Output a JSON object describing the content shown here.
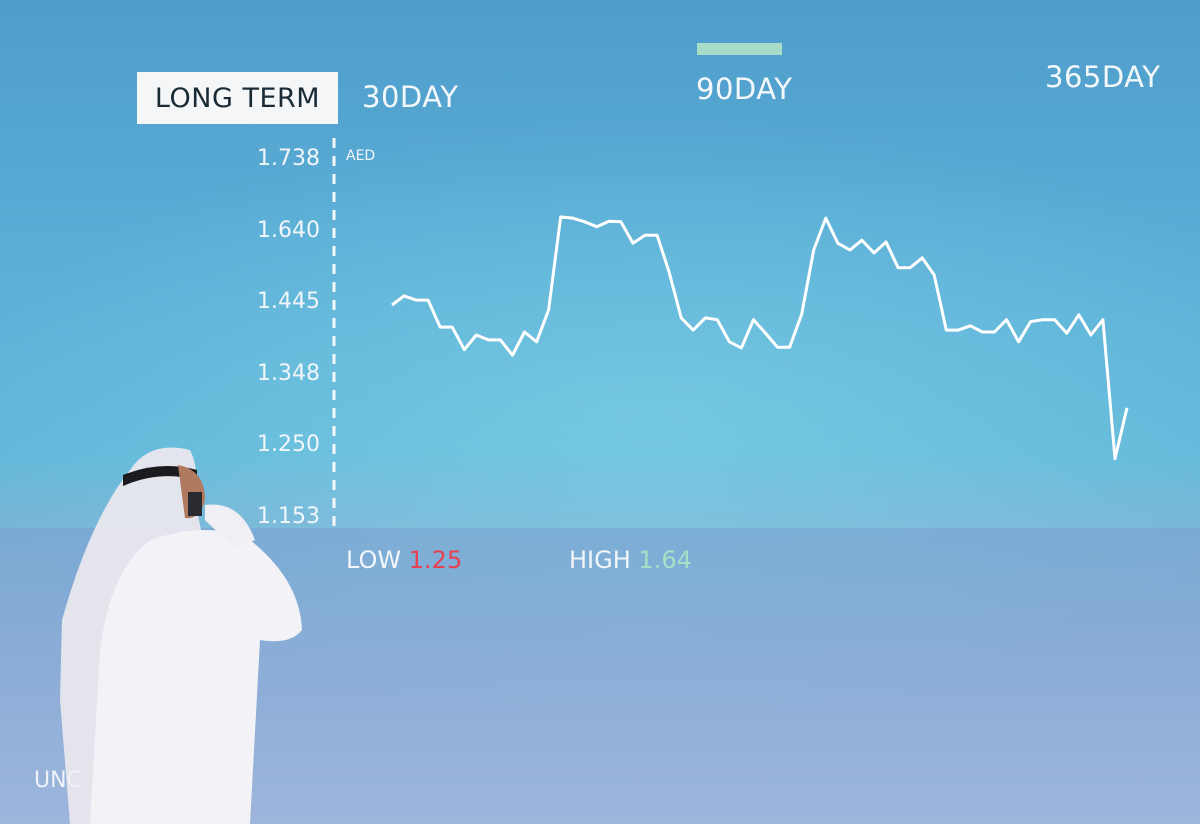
{
  "tabs": [
    {
      "label": "LONG TERM",
      "active": true
    },
    {
      "label": "30DAY",
      "active": false
    },
    {
      "label": "90DAY",
      "active": false,
      "highlighted": true
    },
    {
      "label": "365DAY",
      "active": false
    }
  ],
  "stats": {
    "low_label": "LOW",
    "low_value": "1.25",
    "high_label": "HIGH",
    "high_value": "1.64"
  },
  "footer_text": "UNC",
  "colors": {
    "line": "#ffffff",
    "low": "#e8404e",
    "high": "#a8e0c6",
    "selected_bar": "#a8dcc8",
    "background": "#5aaed6"
  },
  "chart_data": {
    "type": "line",
    "title": "",
    "ylabel": "AED",
    "xlabel": "",
    "yticks": [
      "1.738",
      "1.640",
      "1.445",
      "1.348",
      "1.250",
      "1.153"
    ],
    "ylim": [
      1.153,
      1.738
    ],
    "grid": false,
    "series": [
      {
        "values": [
          1.501,
          1.516,
          1.509,
          1.509,
          1.465,
          1.465,
          1.428,
          1.452,
          1.444,
          1.444,
          1.419,
          1.457,
          1.441,
          1.493,
          1.645,
          1.643,
          1.637,
          1.629,
          1.638,
          1.637,
          1.602,
          1.615,
          1.615,
          1.555,
          1.48,
          1.46,
          1.48,
          1.477,
          1.441,
          1.431,
          1.477,
          1.455,
          1.432,
          1.432,
          1.486,
          1.591,
          1.643,
          1.602,
          1.591,
          1.607,
          1.586,
          1.604,
          1.562,
          1.562,
          1.578,
          1.55,
          1.46,
          1.46,
          1.467,
          1.457,
          1.457,
          1.477,
          1.441,
          1.474,
          1.477,
          1.477,
          1.455,
          1.485,
          1.452,
          1.477,
          1.25,
          1.333
        ]
      }
    ]
  }
}
